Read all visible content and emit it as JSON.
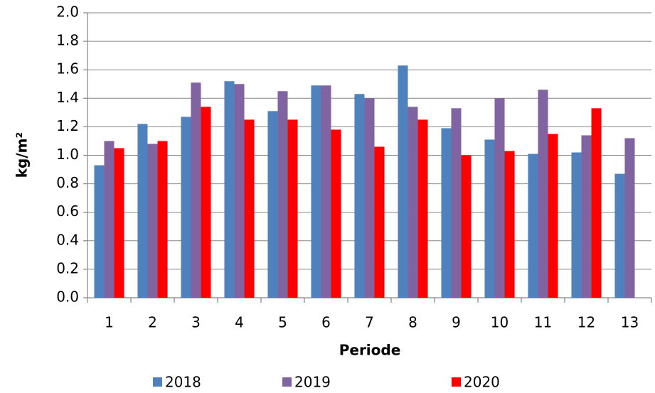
{
  "chart_data": {
    "type": "bar",
    "y_label": "kg/m²",
    "x_label": "Periode",
    "categories": [
      "1",
      "2",
      "3",
      "4",
      "5",
      "6",
      "7",
      "8",
      "9",
      "10",
      "11",
      "12",
      "13"
    ],
    "series": [
      {
        "name": "2018",
        "color": "#4f81bd",
        "values": [
          0.93,
          1.22,
          1.27,
          1.52,
          1.31,
          1.49,
          1.43,
          1.63,
          1.19,
          1.11,
          1.01,
          1.02,
          0.87
        ]
      },
      {
        "name": "2019",
        "color": "#8064a2",
        "values": [
          1.1,
          1.08,
          1.51,
          1.5,
          1.45,
          1.49,
          1.4,
          1.34,
          1.33,
          1.4,
          1.46,
          1.14,
          1.12
        ]
      },
      {
        "name": "2020",
        "color": "#ff0000",
        "values": [
          1.05,
          1.1,
          1.34,
          1.25,
          1.25,
          1.18,
          1.06,
          1.25,
          1.0,
          1.03,
          1.15,
          1.33,
          null
        ]
      }
    ],
    "ylim": [
      0,
      2
    ],
    "yticks": [
      {
        "value": 0,
        "label": "0.0"
      },
      0.2,
      0.4,
      0.6,
      0.8,
      {
        "value": 1,
        "label": "1.0"
      },
      1.2,
      1.4,
      1.6,
      1.8,
      {
        "value": 2,
        "label": "2.0"
      }
    ],
    "grid": true
  }
}
